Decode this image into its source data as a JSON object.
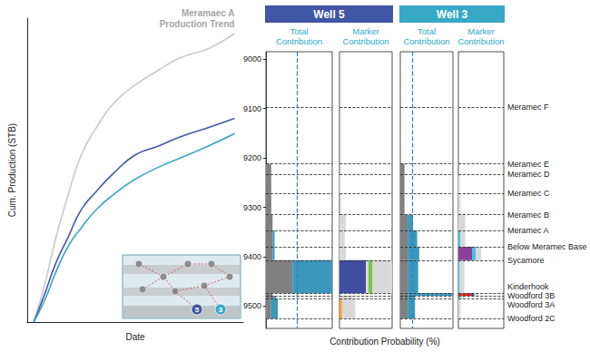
{
  "chart_data": [
    {
      "type": "line",
      "xlabel": "Date",
      "ylabel": "Cum. Production (STB)",
      "xlim": [
        0,
        100
      ],
      "ylim": [
        0,
        100
      ],
      "tick_labels": false,
      "grid": false,
      "annotation": [
        "Meramaec A",
        "Production Trend"
      ],
      "x": [
        3,
        8,
        13,
        19,
        25,
        32,
        40,
        50,
        61,
        71,
        84,
        96
      ],
      "series": [
        {
          "color": "#c9c9c9",
          "values": [
            0,
            12,
            27,
            42,
            55,
            64,
            72,
            78,
            83,
            87,
            90,
            95
          ]
        },
        {
          "color": "#4558a8",
          "values": [
            0,
            9,
            19,
            28,
            37,
            43,
            49,
            55,
            58,
            61,
            64,
            67
          ]
        },
        {
          "color": "#3aa6c4",
          "values": [
            0,
            7,
            16,
            25,
            31,
            37,
            42,
            47,
            51,
            54,
            58,
            62
          ]
        }
      ]
    },
    {
      "type": "bar",
      "orientation": "horizontal",
      "stacked": true,
      "xlabel": "Contribution Probability (%)",
      "xlim": [
        0,
        100
      ],
      "ylim": [
        8985,
        9545
      ],
      "yticks": [
        9000,
        9100,
        9200,
        9300,
        9400,
        9500
      ],
      "tick_labels": "y",
      "markers": [
        {
          "label": "Meramec F",
          "depth": 9097
        },
        {
          "label": "Meramec E",
          "depth": 9212
        },
        {
          "label": "Meramec D",
          "depth": 9233
        },
        {
          "label": "Meramec C",
          "depth": 9272
        },
        {
          "label": "Meramec B",
          "depth": 9315
        },
        {
          "label": "Meramec A",
          "depth": 9347
        },
        {
          "label": "Below Meramec Base",
          "depth": 9380
        },
        {
          "label": "Sycamore",
          "depth": 9407
        },
        {
          "label": "Kinderhook",
          "depth": 9474
        },
        {
          "label": "Woodford 3B",
          "depth": 9479
        },
        {
          "label": "Woodford 3A",
          "depth": 9485
        },
        {
          "label": "Woodford 2C",
          "depth": 9525
        }
      ],
      "wells": [
        {
          "name": "Well 5",
          "color": "#4156a6",
          "panels": [
            {
              "title": "Total Contribution",
              "reference": {
                "value": 47,
                "color": "#2f7cc4",
                "line_style": "dashed"
              },
              "series": [
                {
                  "color": "#808080",
                  "values": [
                    0,
                    8,
                    8,
                    8,
                    10,
                    10,
                    10,
                    40,
                    10,
                    12,
                    8
                  ]
                },
                {
                  "color": "#3b98ba",
                  "values": [
                    0,
                    0,
                    0,
                    0,
                    0,
                    3,
                    3,
                    60,
                    0,
                    3,
                    10
                  ]
                }
              ]
            },
            {
              "title": "Marker Contribution",
              "series": [
                {
                  "color": "#f4a340",
                  "values": [
                    0,
                    0,
                    0,
                    0,
                    0,
                    0,
                    0,
                    0,
                    0,
                    0,
                    5
                  ]
                },
                {
                  "color": "#3f4ea1",
                  "values": [
                    0,
                    0,
                    0,
                    0,
                    0,
                    0,
                    0,
                    50,
                    0,
                    0,
                    0
                  ]
                },
                {
                  "color": "#d9d9d9",
                  "values": [
                    0,
                    0,
                    0,
                    0,
                    0,
                    0,
                    0,
                    5,
                    0,
                    0,
                    0
                  ]
                },
                {
                  "color": "#7cc243",
                  "values": [
                    0,
                    0,
                    0,
                    0,
                    0,
                    0,
                    0,
                    8,
                    0,
                    0,
                    0
                  ]
                },
                {
                  "color": "#d9d9d9",
                  "values": [
                    0,
                    0,
                    2,
                    0,
                    12,
                    10,
                    12,
                    37,
                    0,
                    25,
                    25
                  ]
                }
              ]
            }
          ]
        },
        {
          "name": "Well 3",
          "color": "#37a9c6",
          "panels": [
            {
              "title": "Total Contribution",
              "reference": {
                "value": 22,
                "color": "#2f7cc4",
                "line_style": "dashed"
              },
              "series": [
                {
                  "color": "#808080",
                  "values": [
                    0,
                    8,
                    8,
                    8,
                    14,
                    14,
                    14,
                    14,
                    14,
                    14,
                    14
                  ]
                },
                {
                  "color": "#3b98ba",
                  "values": [
                    0,
                    0,
                    0,
                    0,
                    10,
                    18,
                    22,
                    20,
                    86,
                    14,
                    14
                  ]
                }
              ]
            },
            {
              "title": "Marker Contribution",
              "series": [
                {
                  "color": "#d62728",
                  "values": [
                    0,
                    0,
                    0,
                    0,
                    0,
                    0,
                    0,
                    0,
                    30,
                    0,
                    0
                  ]
                },
                {
                  "color": "#3f4ea1",
                  "values": [
                    0,
                    0,
                    0,
                    0,
                    0,
                    0,
                    0,
                    0,
                    5,
                    0,
                    0
                  ]
                },
                {
                  "color": "#8e3f98",
                  "values": [
                    0,
                    0,
                    0,
                    0,
                    0,
                    0,
                    30,
                    0,
                    0,
                    0,
                    0
                  ]
                },
                {
                  "color": "#2f9fb0",
                  "values": [
                    0,
                    0,
                    0,
                    0,
                    0,
                    0,
                    0,
                    0,
                    0,
                    3,
                    0
                  ]
                },
                {
                  "color": "#46c3dc",
                  "values": [
                    0,
                    0,
                    0,
                    0,
                    0,
                    5,
                    8,
                    3,
                    0,
                    0,
                    0
                  ]
                },
                {
                  "color": "#d9d9d9",
                  "values": [
                    0,
                    0,
                    3,
                    5,
                    15,
                    10,
                    12,
                    10,
                    10,
                    10,
                    5
                  ]
                }
              ]
            }
          ]
        }
      ]
    }
  ]
}
